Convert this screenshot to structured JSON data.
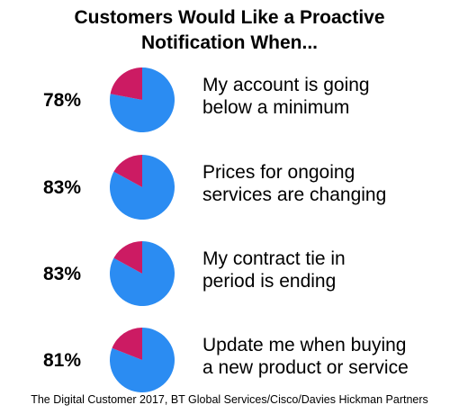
{
  "chart_data": {
    "type": "pie",
    "title": [
      "Customers Would Like a Proactive",
      "Notification When..."
    ],
    "items": [
      {
        "label_lines": [
          "My account is going",
          "below a minimum"
        ],
        "percent_text": "78%",
        "value": 78
      },
      {
        "label_lines": [
          "Prices for ongoing",
          "services are changing"
        ],
        "percent_text": "83%",
        "value": 83
      },
      {
        "label_lines": [
          "My contract tie in",
          "period is ending"
        ],
        "percent_text": "83%",
        "value": 83
      },
      {
        "label_lines": [
          "Update me when buying",
          "a new product or service"
        ],
        "percent_text": "81%",
        "value": 81
      }
    ],
    "colors": {
      "main": "#2b8cf2",
      "rest": "#cc1b63"
    }
  },
  "source": "The Digital Customer 2017, BT Global Services/Cisco/Davies Hickman Partners"
}
